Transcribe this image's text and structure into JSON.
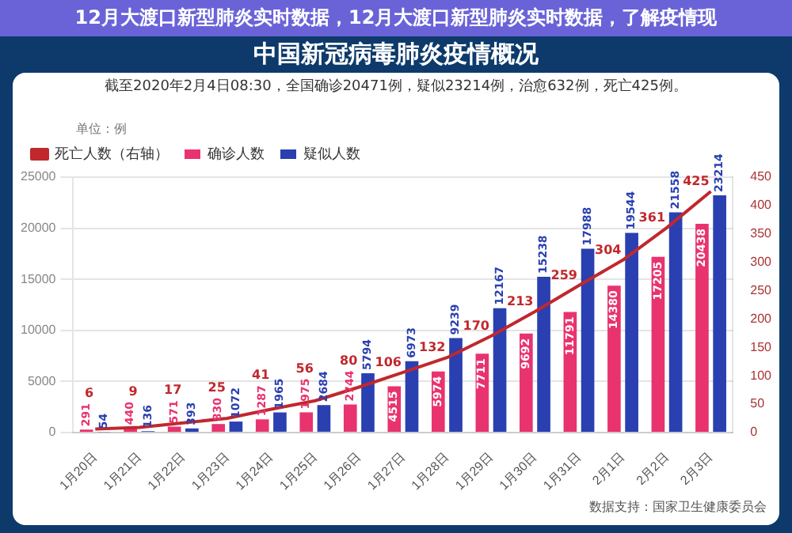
{
  "chart_data": {
    "type": "bar",
    "title": "中国新冠病毒肺炎疫情概况",
    "subtitle": "截至2020年2月4日08:30，全国确诊20471例，疑似23214例，治愈632例，死亡425例。",
    "annotations": [
      "12月大渡口新型肺炎实时数据，12月大渡口新型肺炎实时数据，了解疫情现",
      "单位：例",
      "数据支持：国家卫生健康委员会"
    ],
    "categories": [
      "1月20日",
      "1月21日",
      "1月22日",
      "1月23日",
      "1月24日",
      "1月25日",
      "1月26日",
      "1月27日",
      "1月28日",
      "1月29日",
      "1月30日",
      "1月31日",
      "2月1日",
      "2月2日",
      "2月3日"
    ],
    "series": [
      {
        "name": "确诊人数",
        "color": "#e8336e",
        "values": [
          291,
          440,
          571,
          830,
          1287,
          1975,
          2744,
          4515,
          5974,
          7711,
          9692,
          11791,
          14380,
          17205,
          20438
        ]
      },
      {
        "name": "疑似人数",
        "color": "#2a3fb0",
        "values": [
          54,
          136,
          393,
          1072,
          1965,
          2684,
          5794,
          6973,
          9239,
          12167,
          15238,
          17988,
          19544,
          21558,
          23214
        ]
      },
      {
        "name": "死亡人数（右轴）",
        "type": "line",
        "axis": "y2",
        "color": "#c0282d",
        "values": [
          6,
          9,
          17,
          25,
          41,
          56,
          80,
          106,
          132,
          170,
          213,
          259,
          304,
          361,
          425
        ]
      }
    ],
    "ylim": [
      0,
      25000
    ],
    "yticks": [
      0,
      5000,
      10000,
      15000,
      20000,
      25000
    ],
    "y2lim": [
      0,
      450
    ],
    "y2ticks": [
      0,
      50,
      100,
      150,
      200,
      250,
      300,
      350,
      400,
      450
    ],
    "grid": "y",
    "legend": "top left",
    "data_labels": true,
    "marker": "none"
  }
}
